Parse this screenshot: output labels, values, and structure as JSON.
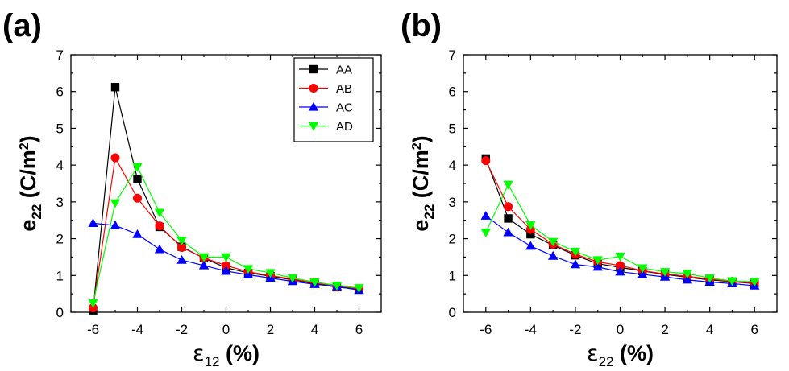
{
  "chart_data": [
    {
      "type": "line",
      "panel_label": "(a)",
      "ylabel": {
        "main": "e",
        "sub": "22",
        "unit_pre": " (C/m",
        "sup": "2",
        "unit_post": ")"
      },
      "xlabel": {
        "main": "ε",
        "sub": "12",
        "unit": " (%)"
      },
      "xlim": [
        -7,
        7
      ],
      "ylim": [
        0,
        7
      ],
      "xticks": [
        -6,
        -4,
        -2,
        0,
        2,
        4,
        6
      ],
      "yticks": [
        0,
        1,
        2,
        3,
        4,
        5,
        6,
        7
      ],
      "legend": {
        "show": true,
        "position": "top-right"
      },
      "x": [
        -6,
        -5,
        -4,
        -3,
        -2,
        -1,
        0,
        1,
        2,
        3,
        4,
        5,
        6
      ],
      "series": [
        {
          "name": "AA",
          "color": "#000000",
          "marker": "square",
          "values": [
            0.05,
            6.12,
            3.62,
            2.32,
            1.78,
            1.47,
            1.21,
            1.07,
            0.98,
            0.88,
            0.78,
            0.68,
            0.63
          ]
        },
        {
          "name": "AB",
          "color": "#ff0000",
          "marker": "circle",
          "values": [
            0.12,
            4.2,
            3.1,
            2.35,
            1.76,
            1.48,
            1.27,
            1.1,
            1.0,
            0.9,
            0.8,
            0.7,
            0.64
          ]
        },
        {
          "name": "AC",
          "color": "#0000ff",
          "marker": "triangle-up",
          "values": [
            2.42,
            2.36,
            2.12,
            1.71,
            1.42,
            1.27,
            1.12,
            1.02,
            0.93,
            0.84,
            0.76,
            0.7,
            0.6
          ]
        },
        {
          "name": "AD",
          "color": "#00ff00",
          "marker": "triangle-down",
          "values": [
            0.25,
            2.97,
            3.95,
            2.71,
            1.95,
            1.5,
            1.5,
            1.18,
            1.07,
            0.93,
            0.82,
            0.73,
            0.66
          ]
        }
      ]
    },
    {
      "type": "line",
      "panel_label": "(b)",
      "ylabel": {
        "main": "e",
        "sub": "22",
        "unit_pre": " (C/m",
        "sup": "2",
        "unit_post": ")"
      },
      "xlabel": {
        "main": "ε",
        "sub": "22",
        "unit": " (%)"
      },
      "xlim": [
        -7,
        7
      ],
      "ylim": [
        0,
        7
      ],
      "xticks": [
        -6,
        -4,
        -2,
        0,
        2,
        4,
        6
      ],
      "yticks": [
        0,
        1,
        2,
        3,
        4,
        5,
        6,
        7
      ],
      "legend": {
        "show": false
      },
      "x": [
        -6,
        -5,
        -4,
        -3,
        -2,
        -1,
        0,
        1,
        2,
        3,
        4,
        5,
        6
      ],
      "series": [
        {
          "name": "AA",
          "color": "#000000",
          "marker": "square",
          "values": [
            4.18,
            2.55,
            2.12,
            1.82,
            1.55,
            1.32,
            1.22,
            1.12,
            1.03,
            0.95,
            0.88,
            0.83,
            0.78
          ]
        },
        {
          "name": "AB",
          "color": "#ff0000",
          "marker": "circle",
          "values": [
            4.12,
            2.87,
            2.25,
            1.85,
            1.58,
            1.37,
            1.27,
            1.13,
            1.04,
            0.98,
            0.9,
            0.84,
            0.79
          ]
        },
        {
          "name": "AC",
          "color": "#0000ff",
          "marker": "triangle-up",
          "values": [
            2.62,
            2.17,
            1.8,
            1.53,
            1.3,
            1.23,
            1.1,
            1.03,
            0.96,
            0.88,
            0.82,
            0.78,
            0.72
          ]
        },
        {
          "name": "AD",
          "color": "#00ff00",
          "marker": "triangle-down",
          "values": [
            2.17,
            3.47,
            2.37,
            1.92,
            1.65,
            1.42,
            1.52,
            1.2,
            1.1,
            1.05,
            0.93,
            0.85,
            0.83
          ]
        }
      ]
    }
  ]
}
